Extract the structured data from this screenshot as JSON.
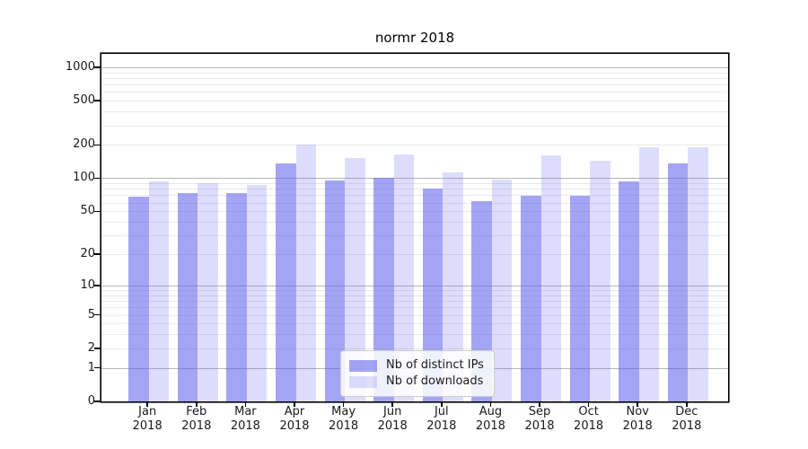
{
  "chart_data": {
    "type": "bar",
    "title": "normr 2018",
    "categories": [
      "Jan",
      "Feb",
      "Mar",
      "Apr",
      "May",
      "Jun",
      "Jul",
      "Aug",
      "Sep",
      "Oct",
      "Nov",
      "Dec"
    ],
    "category_year": "2018",
    "series": [
      {
        "name": "Nb of distinct IPs",
        "color": "rgba(99,99,237,0.58)",
        "values": [
          68,
          73,
          74,
          137,
          96,
          100,
          80,
          62,
          69,
          69,
          93,
          135
        ]
      },
      {
        "name": "Nb of downloads",
        "color": "rgba(99,99,237,0.22)",
        "values": [
          93,
          91,
          87,
          200,
          152,
          165,
          112,
          98,
          160,
          143,
          192,
          192
        ]
      }
    ],
    "yscale": "symlog (plotted as log10(1+v))",
    "yticks": [
      0,
      1,
      2,
      5,
      10,
      20,
      50,
      100,
      200,
      500,
      1000
    ],
    "ylim": [
      0,
      1300
    ],
    "grid_major_at": [
      1,
      10,
      100,
      1000
    ],
    "grid_minor_mantissas": [
      2,
      3,
      4,
      5,
      6,
      7,
      8,
      9
    ],
    "legend_position": "lower center",
    "colors": {
      "grid_major": "#b5b5b5",
      "grid_minor": "#e9e9e9",
      "axis": "#000000",
      "text": "#1a1a1a",
      "background": "#ffffff"
    }
  }
}
